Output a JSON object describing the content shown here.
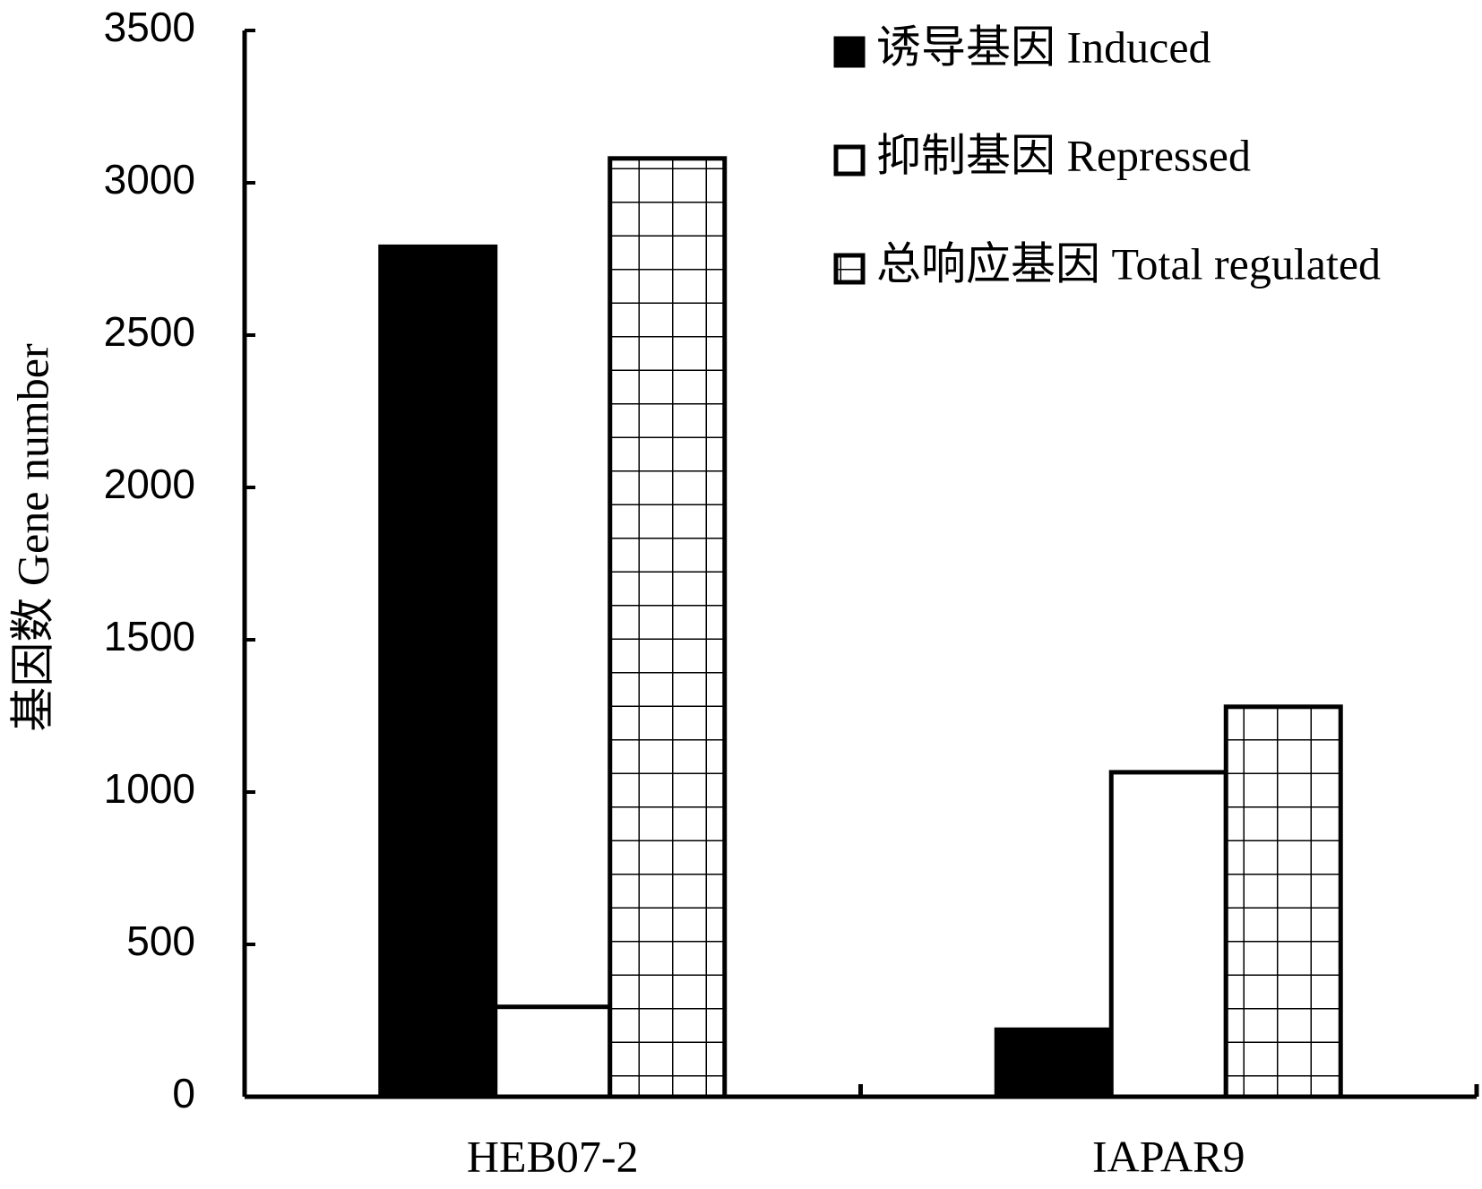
{
  "chart_data": {
    "type": "bar",
    "y_label": "基因数  Gene number",
    "categories": [
      "HEB07-2",
      "IAPAR9"
    ],
    "series": [
      {
        "name": "诱导基因 Induced",
        "color": "#000000",
        "values": [
          2790,
          220
        ]
      },
      {
        "name": "抑制基因 Repressed",
        "color": "#ffffff",
        "values": [
          295,
          1065
        ]
      },
      {
        "name": "总响应基因 Total regulated",
        "color": "#ffffff",
        "hatch": "grid",
        "values": [
          3080,
          1280
        ]
      }
    ],
    "ylim": [
      0,
      3500
    ],
    "yticks": [
      0,
      500,
      1000,
      1500,
      2000,
      2500,
      3000,
      3500
    ],
    "grid": false,
    "legend": "top-right"
  }
}
